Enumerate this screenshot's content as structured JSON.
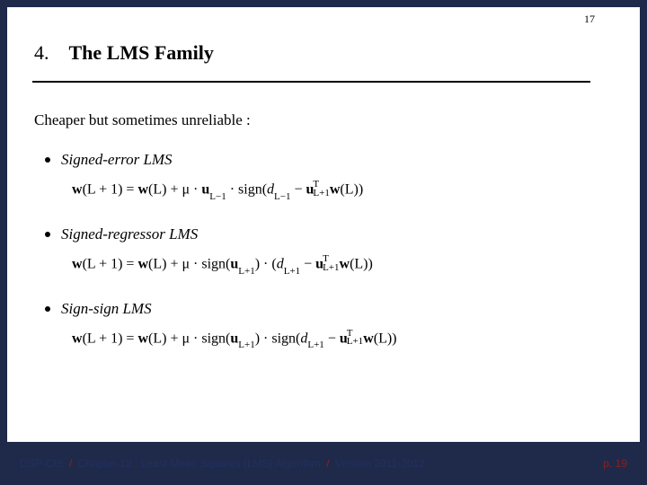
{
  "top_page_number": "17",
  "section_number": "4.",
  "section_title": "The LMS Family",
  "intro": "Cheaper but sometimes unreliable :",
  "items": [
    {
      "label": "Signed-error LMS"
    },
    {
      "label": "Signed-regressor LMS"
    },
    {
      "label": "Sign-sign LMS"
    }
  ],
  "equations": {
    "eq1": {
      "lhs_w": "w",
      "lhs_arg": "(L + 1) = ",
      "rhs_w1": "w",
      "rhs_w1_arg": "(L) + μ · ",
      "u": "u",
      "u_sub": "L−1",
      "mid": " · sign(",
      "d": "d",
      "d_sub": "L−1",
      "minus": " − ",
      "u2": "u",
      "u2_sup": "T",
      "u2_sub": "L+1",
      "w2": "w",
      "w2_arg": "(L))"
    },
    "eq2": {
      "lhs_w": "w",
      "lhs_arg": "(L + 1) = ",
      "rhs_w1": "w",
      "rhs_w1_arg": "(L) + μ · sign(",
      "u": "u",
      "u_sub": "L+1",
      "mid": ") · (",
      "d": "d",
      "d_sub": "L+1",
      "minus": " − ",
      "u2": "u",
      "u2_sup": "T",
      "u2_sub": "L+1",
      "w2": "w",
      "w2_arg": "(L))"
    },
    "eq3": {
      "lhs_w": "w",
      "lhs_arg": "(L + 1) = ",
      "rhs_w1": "w",
      "rhs_w1_arg": "(L) + μ · sign(",
      "u": "u",
      "u_sub": "L+1",
      "mid": ") · sign(",
      "d": "d",
      "d_sub": "L+1",
      "minus": " − ",
      "u2": "u",
      "u2_sup": "T",
      "u2_sub": "L+1",
      "w2": "w",
      "w2_arg": "(L))"
    }
  },
  "footer": {
    "course": "DSP-CIS",
    "chapter": "Chapter-12 : Least Mean Squares (LMS) Algorithm",
    "version": "Version 2011-2012",
    "sep": "/",
    "page": "p. 19"
  },
  "colors": {
    "bg": "#1f2a4a",
    "slide_bg": "#ffffff",
    "text": "#000000",
    "footer_main": "#203060",
    "footer_accent": "#8a2020"
  }
}
